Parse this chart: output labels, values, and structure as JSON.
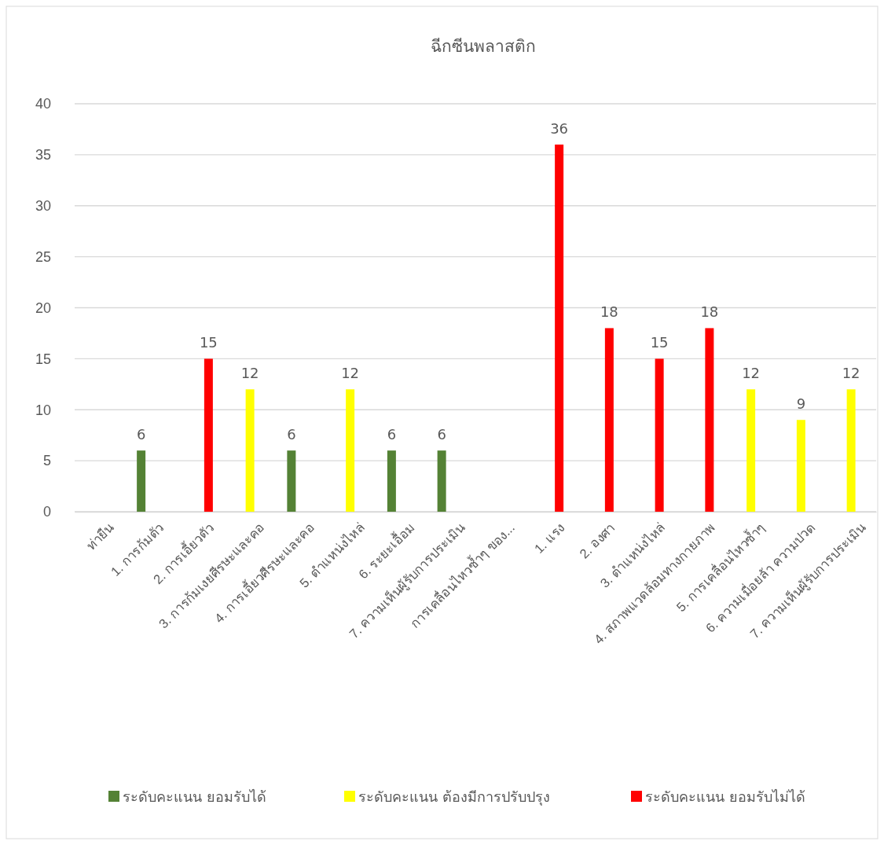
{
  "chart_data": {
    "type": "bar",
    "title": "ฉีกซีนพลาสติก",
    "categories": [
      "ท่ายืน",
      "1. การก้มตัว",
      "2. การเอี้ยวตัว",
      "3. การก้มเงยศีรษะและคอ",
      "4. การเอี้ยวศีรษะและคอ",
      "5. ตำแหน่งไหล่",
      "6. ระยะเอื้อม",
      "7. ความเห็นผู้รับการประเมิน",
      "การเคลื่อนไหวซ้ำๆ ของ...",
      "1. แรง",
      "2. องศา",
      "3. ตำแหน่งไหล่",
      "4. สภาพแวดล้อมทางกายภาพ",
      "5. การเคลื่อนไหวซ้ำๆ",
      "6. ความเมื่อยล้า ความปวด",
      "7. ความเห็นผู้รับการประเมิน"
    ],
    "series": [
      {
        "name": "ระดับคะแนน ยอมรับได้",
        "color": "#548235",
        "values": [
          null,
          6,
          null,
          null,
          6,
          null,
          6,
          6,
          null,
          null,
          null,
          null,
          null,
          null,
          null,
          null
        ]
      },
      {
        "name": "ระดับคะแนน ต้องมีการปรับปรุง",
        "color": "#ffff00",
        "values": [
          null,
          null,
          null,
          12,
          null,
          12,
          null,
          null,
          null,
          null,
          null,
          null,
          null,
          12,
          9,
          12
        ]
      },
      {
        "name": "ระดับคะแนน ยอมรับไม่ได้",
        "color": "#ff0000",
        "values": [
          null,
          null,
          15,
          null,
          null,
          null,
          null,
          null,
          null,
          36,
          18,
          15,
          18,
          null,
          null,
          null
        ]
      }
    ],
    "ylim": [
      0,
      40
    ],
    "yticks": [
      0,
      5,
      10,
      15,
      20,
      25,
      30,
      35,
      40
    ],
    "grid": "y",
    "legend": "bottom",
    "data_labels": true
  }
}
